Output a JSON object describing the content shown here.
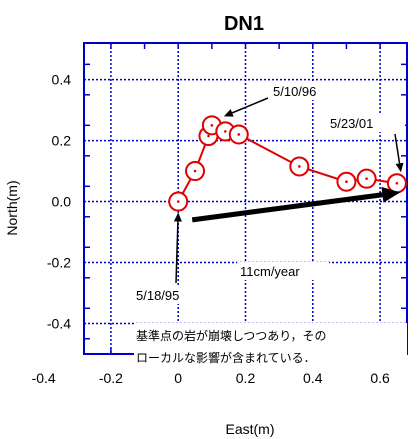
{
  "chart_data": {
    "type": "line",
    "title": "DN1",
    "xlabel": "East(m)",
    "ylabel": "North(m)",
    "xlim": [
      -0.28,
      0.68
    ],
    "ylim": [
      -0.5,
      0.52
    ],
    "grid": true,
    "x_ticks": [
      {
        "value": -0.4,
        "label": "-0.4"
      },
      {
        "value": -0.2,
        "label": "-0.2"
      },
      {
        "value": 0.0,
        "label": "0"
      },
      {
        "value": 0.2,
        "label": "0.2"
      },
      {
        "value": 0.4,
        "label": "0.4"
      },
      {
        "value": 0.6,
        "label": "0.6"
      }
    ],
    "y_ticks": [
      {
        "value": 0.4,
        "label": "0.4"
      },
      {
        "value": 0.2,
        "label": "0.2"
      },
      {
        "value": 0.0,
        "label": "0.0"
      },
      {
        "value": -0.2,
        "label": "-0.2"
      },
      {
        "value": -0.4,
        "label": "-0.4"
      }
    ],
    "series": [
      {
        "x": [
          0.0,
          0.05,
          0.09,
          0.1,
          0.14,
          0.18,
          0.36,
          0.5,
          0.56,
          0.65
        ],
        "y": [
          0.0,
          0.1,
          0.215,
          0.25,
          0.23,
          0.22,
          0.115,
          0.065,
          0.075,
          0.06
        ],
        "color": "#e00000",
        "marker": "open-circle-dot"
      }
    ],
    "trend_arrow": {
      "from": [
        0.0,
        -0.06
      ],
      "to": [
        0.66,
        0.03
      ],
      "color": "#000000"
    },
    "annotations": [
      {
        "text": "5/10/96"
      },
      {
        "text": "5/23/01"
      },
      {
        "text": "5/18/95"
      },
      {
        "text": "11cm/year"
      }
    ],
    "note_lines": [
      "基準点の岩が崩壊しつつあり，その",
      "ローカルな影響が含まれている．"
    ],
    "colors": {
      "grid": "#0000cc",
      "axes": "#0000cc",
      "series": "#e00000"
    }
  }
}
